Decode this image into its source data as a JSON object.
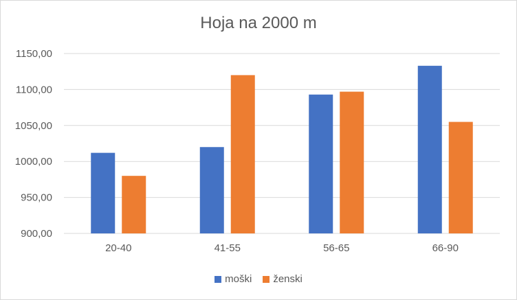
{
  "chart_data": {
    "type": "bar",
    "title": "Hoja na 2000 m",
    "categories": [
      "20-40",
      "41-55",
      "56-65",
      "66-90"
    ],
    "series": [
      {
        "name": "moški",
        "values": [
          1012,
          1020,
          1093,
          1133
        ],
        "color": "#4472C4"
      },
      {
        "name": "ženski",
        "values": [
          980,
          1120,
          1097,
          1055
        ],
        "color": "#ED7D31"
      }
    ],
    "ylim": [
      900,
      1150
    ],
    "yticks": [
      "900,00",
      "950,00",
      "1000,00",
      "1050,00",
      "1100,00",
      "1150,00"
    ],
    "grid": true,
    "legend_position": "bottom"
  }
}
